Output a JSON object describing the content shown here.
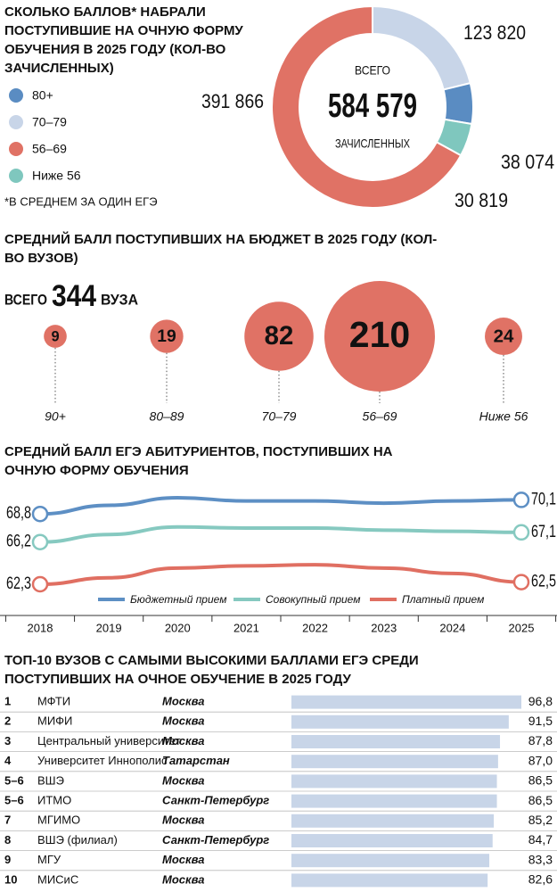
{
  "chart_data": [
    {
      "type": "donut",
      "title": "СКОЛЬКО БАЛЛОВ* НАБРАЛИ ПОСТУПИВШИЕ НА ОЧНУЮ ФОРМУ ОБУЧЕНИЯ В 2025 ГОДУ (КОЛ-ВО ЗАЧИСЛЕННЫХ)",
      "categories": [
        "80+",
        "70–79",
        "56–69",
        "Ниже 56"
      ],
      "values": [
        38074,
        123820,
        391866,
        30819
      ],
      "value_labels": [
        "38 074",
        "123 820",
        "391 866",
        "30 819"
      ],
      "colors": [
        "#5a8cc2",
        "#c8d5e8",
        "#e07265",
        "#7fc7be"
      ],
      "total_prefix": "ВСЕГО",
      "total": {
        "value": 584579,
        "label": "584 579"
      },
      "total_suffix": "ЗАЧИСЛЕННЫХ",
      "footnote": "*В СРЕДНЕМ ЗА ОДИН ЕГЭ",
      "legend": "left"
    },
    {
      "type": "bubble",
      "title": "СРЕДНИЙ БАЛЛ ПОСТУПИВШИХ НА БЮДЖЕТ В 2025 ГОДУ (КОЛ-ВО ВУЗОВ)",
      "total_prefix": "ВСЕГО",
      "total": 344,
      "total_suffix": "ВУЗА",
      "categories": [
        "90+",
        "80–89",
        "70–79",
        "56–69",
        "Ниже 56"
      ],
      "values": [
        9,
        19,
        82,
        210,
        24
      ],
      "color": "#e07265"
    },
    {
      "type": "line",
      "title": "СРЕДНИЙ БАЛЛ ЕГЭ АБИТУРИЕНТОВ, ПОСТУПИВШИХ НА ОЧНУЮ ФОРМУ ОБУЧЕНИЯ",
      "x": [
        2018,
        2019,
        2020,
        2021,
        2022,
        2023,
        2024,
        2025
      ],
      "series": [
        {
          "name": "Бюджетный прием",
          "color": "#5d8fc4",
          "values": [
            68.8,
            69.6,
            70.3,
            70.0,
            70.0,
            69.8,
            70.0,
            70.1
          ],
          "value_labels": [
            "68,8",
            null,
            null,
            null,
            null,
            null,
            null,
            "70,1"
          ]
        },
        {
          "name": "Совокупный прием",
          "color": "#86c9c0",
          "values": [
            66.2,
            66.9,
            67.6,
            67.5,
            67.5,
            67.3,
            67.2,
            67.1
          ],
          "value_labels": [
            "66,2",
            null,
            null,
            null,
            null,
            null,
            null,
            "67,1"
          ]
        },
        {
          "name": "Платный прием",
          "color": "#e06f62",
          "values": [
            62.3,
            62.9,
            63.8,
            64.0,
            64.1,
            63.8,
            63.3,
            62.5
          ],
          "value_labels": [
            "62,3",
            null,
            null,
            null,
            null,
            null,
            null,
            "62,5"
          ]
        }
      ],
      "legend": "bottom"
    },
    {
      "type": "bar",
      "orientation": "horizontal",
      "title": "ТОП-10 ВУЗОВ С САМЫМИ ВЫСОКИМИ БАЛЛАМИ ЕГЭ СРЕДИ ПОСТУПИВШИХ НА ОЧНОЕ ОБУЧЕНИЕ В 2025 ГОДУ",
      "ranks": [
        "1",
        "2",
        "3",
        "4",
        "5–6",
        "5–6",
        "7",
        "8",
        "9",
        "10"
      ],
      "categories": [
        "МФТИ",
        "МИФИ",
        "Центральный университет",
        "Университет Иннополис",
        "ВШЭ",
        "ИТМО",
        "МГИМО",
        "ВШЭ (филиал)",
        "МГУ",
        "МИСиС"
      ],
      "regions": [
        "Москва",
        "Москва",
        "Москва",
        "Татарстан",
        "Москва",
        "Санкт-Петербург",
        "Москва",
        "Санкт-Петербург",
        "Москва",
        "Москва"
      ],
      "values": [
        96.8,
        91.5,
        87.8,
        87.0,
        86.5,
        86.5,
        85.2,
        84.7,
        83.3,
        82.6
      ],
      "value_labels": [
        "96,8",
        "91,5",
        "87,8",
        "87,0",
        "86,5",
        "86,5",
        "85,2",
        "84,7",
        "83,3",
        "82,6"
      ],
      "color": "#c8d5e8"
    }
  ]
}
